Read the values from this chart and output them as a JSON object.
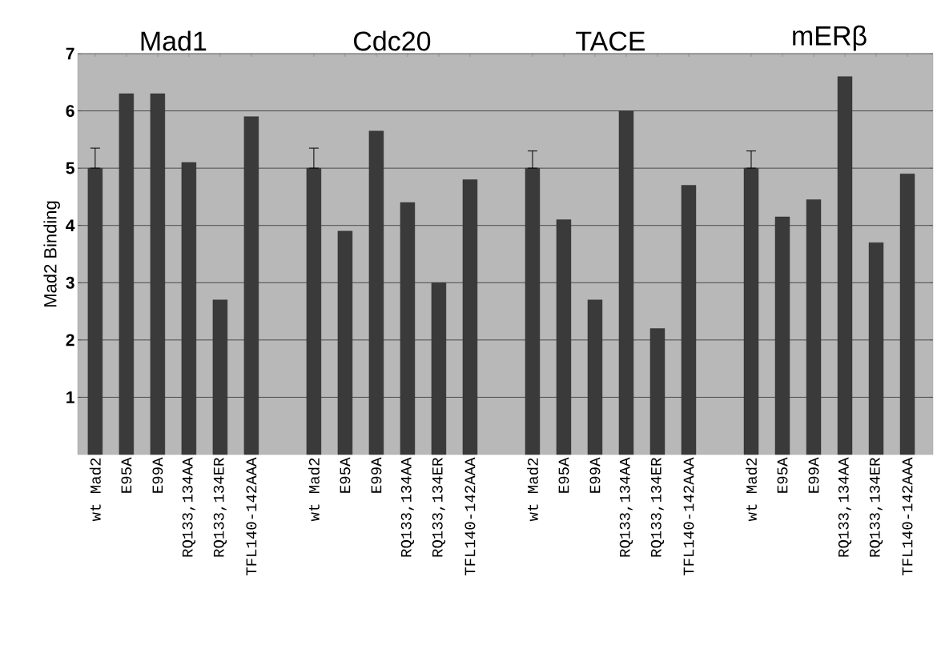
{
  "chart_data": {
    "type": "bar",
    "ylabel": "Mad2 Binding",
    "categories": [
      "wt Mad2",
      "E95A",
      "E99A",
      "RQ133,134AA",
      "RQ133,134ER",
      "TFL140-142AAA",
      null,
      "wt Mad2",
      "E95A",
      "E99A",
      "RQ133,134AA",
      "RQ133,134ER",
      "TFL140-142AAA",
      null,
      "wt Mad2",
      "E95A",
      "E99A",
      "RQ133,134AA",
      "RQ133,134ER",
      "TFL140-142AAA",
      null,
      "wt Mad2",
      "E95A",
      "E99A",
      "RQ133,134AA",
      "RQ133,134ER",
      "TFL140-142AAA"
    ],
    "values": [
      5.0,
      6.3,
      6.3,
      5.1,
      2.7,
      5.9,
      null,
      5.0,
      3.9,
      5.65,
      4.4,
      3.0,
      4.8,
      null,
      5.0,
      4.1,
      2.7,
      6.0,
      2.2,
      4.7,
      null,
      5.0,
      4.15,
      4.45,
      6.6,
      3.7,
      4.9
    ],
    "errors": [
      [
        5.0,
        5.35
      ],
      null,
      null,
      null,
      null,
      null,
      null,
      [
        5.0,
        5.35
      ],
      null,
      null,
      null,
      null,
      null,
      null,
      [
        5.0,
        5.3
      ],
      null,
      null,
      null,
      null,
      null,
      null,
      [
        5.0,
        5.3
      ],
      null,
      null,
      null,
      null,
      null
    ],
    "color": "#3a3a3a",
    "annotations": [
      "Mad1",
      "Cdc20",
      "TACE",
      "mERβ"
    ],
    "ylim": [
      0,
      7
    ],
    "yticks": [
      1,
      2,
      3,
      4,
      5,
      6,
      7
    ],
    "grid": "y"
  }
}
